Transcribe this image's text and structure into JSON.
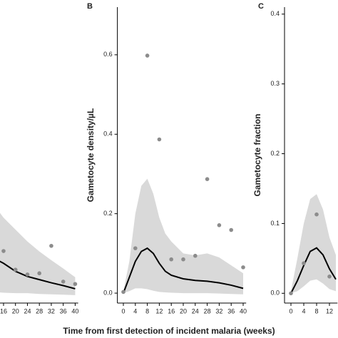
{
  "chart_data": [
    {
      "type": "line",
      "xlim": [
        14,
        41
      ],
      "ylim": [
        -0.025,
        0.72
      ],
      "xticks": [
        16,
        20,
        24,
        28,
        32,
        36,
        40
      ],
      "points": {
        "x": [
          16,
          20,
          24,
          28,
          32,
          36,
          40
        ],
        "values": [
          0.106,
          0.059,
          0.047,
          0.05,
          0.119,
          0.029,
          0.023
        ],
        "color": "#8c8c8c"
      },
      "fit": {
        "x": [
          14,
          16,
          20,
          24,
          28,
          32,
          36,
          40
        ],
        "values": [
          0.083,
          0.075,
          0.055,
          0.042,
          0.034,
          0.026,
          0.019,
          0.011
        ],
        "lower": [
          0.002,
          0.001,
          0.0,
          0.0,
          -0.002,
          -0.003,
          -0.004,
          -0.005
        ],
        "upper": [
          0.21,
          0.19,
          0.16,
          0.13,
          0.105,
          0.083,
          0.062,
          0.04
        ],
        "color": "#000000",
        "band_color": "#d9d9d9"
      }
    },
    {
      "type": "line",
      "panel": "B",
      "ylabel": "Gametocyte density/µL",
      "xlabel": "Time from first detection of incident malaria (weeks)",
      "xlim": [
        -2,
        41
      ],
      "ylim": [
        -0.025,
        0.72
      ],
      "xticks": [
        0,
        4,
        8,
        12,
        16,
        20,
        24,
        28,
        32,
        36,
        40
      ],
      "yticks": [
        {
          "value": 0,
          "label": "0.0"
        },
        0.2,
        0.4,
        0.6
      ],
      "points": {
        "x": [
          0,
          4,
          8,
          12,
          16,
          20,
          24,
          28,
          32,
          36,
          40
        ],
        "values": [
          0.003,
          0.113,
          0.598,
          0.387,
          0.085,
          0.085,
          0.094,
          0.287,
          0.171,
          0.159,
          0.065
        ],
        "color": "#8c8c8c"
      },
      "fit": {
        "x": [
          0,
          2,
          4,
          6,
          8,
          10,
          12,
          14,
          16,
          20,
          24,
          28,
          32,
          36,
          40
        ],
        "values": [
          0.0,
          0.04,
          0.08,
          0.105,
          0.113,
          0.1,
          0.075,
          0.055,
          0.045,
          0.036,
          0.032,
          0.03,
          0.026,
          0.02,
          0.012
        ],
        "lower": [
          0.0,
          0.005,
          0.012,
          0.012,
          0.01,
          0.006,
          0.003,
          0.002,
          0.001,
          0.0,
          0.0,
          0.0,
          -0.001,
          -0.002,
          -0.003
        ],
        "upper": [
          0.005,
          0.08,
          0.2,
          0.27,
          0.288,
          0.25,
          0.19,
          0.15,
          0.13,
          0.1,
          0.095,
          0.1,
          0.09,
          0.07,
          0.05
        ],
        "color": "#000000",
        "band_color": "#d9d9d9"
      }
    },
    {
      "type": "line",
      "panel": "C",
      "ylabel": "Gametocyte fraction",
      "xlim": [
        -2,
        14.5
      ],
      "ylim": [
        -0.014,
        0.41
      ],
      "xticks": [
        0,
        4,
        8,
        12
      ],
      "yticks": [
        {
          "value": 0,
          "label": "0.0"
        },
        0.1,
        0.2,
        0.3,
        0.4
      ],
      "points": {
        "x": [
          0,
          4,
          8,
          12
        ],
        "values": [
          0.0,
          0.043,
          0.113,
          0.024
        ],
        "color": "#8c8c8c"
      },
      "fit": {
        "x": [
          0,
          2,
          4,
          6,
          8,
          10,
          12,
          14
        ],
        "values": [
          0.0,
          0.018,
          0.04,
          0.06,
          0.065,
          0.055,
          0.035,
          0.02
        ],
        "lower": [
          0.0,
          0.003,
          0.01,
          0.018,
          0.02,
          0.014,
          0.006,
          0.003
        ],
        "upper": [
          0.003,
          0.05,
          0.1,
          0.135,
          0.142,
          0.12,
          0.08,
          0.055
        ],
        "color": "#000000",
        "band_color": "#d9d9d9"
      }
    }
  ]
}
